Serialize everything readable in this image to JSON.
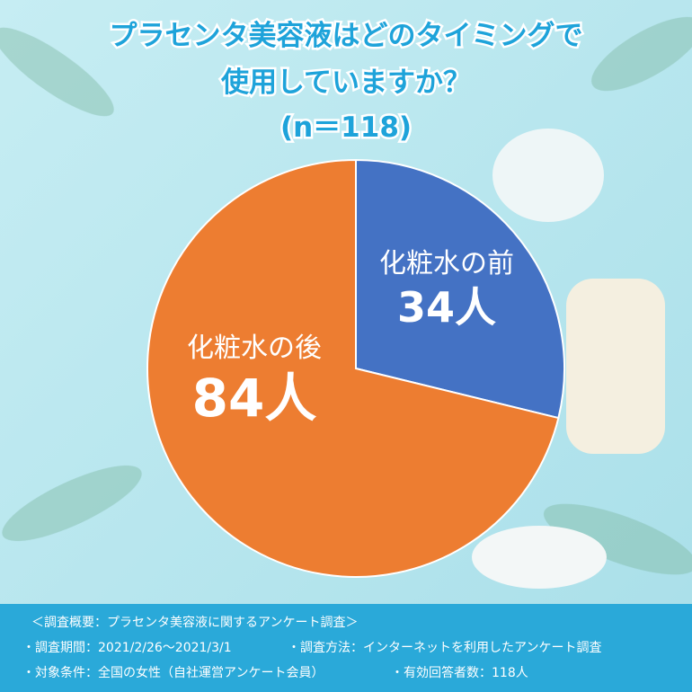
{
  "chart_data": {
    "type": "pie",
    "title": [
      "プラセンタ美容液はどのタイミングで",
      "使用していますか？"
    ],
    "subtitle": "(n＝118)",
    "categories": [
      "化粧水の前",
      "化粧水の後"
    ],
    "values": [
      34,
      84
    ],
    "value_labels": [
      "34人",
      "84人"
    ],
    "colors": [
      "#4472c4",
      "#ed7d31"
    ]
  },
  "footer": {
    "heading": "＜調査概要：プラセンタ美容液に関するアンケート調査＞",
    "period": "・調査期間：2021/2/26〜2021/3/1",
    "method": "・調査方法：インターネットを利用したアンケート調査",
    "target": "・対象条件：全国の女性（自社運営アンケート会員）",
    "respondents": "・有効回答者数：118人"
  }
}
